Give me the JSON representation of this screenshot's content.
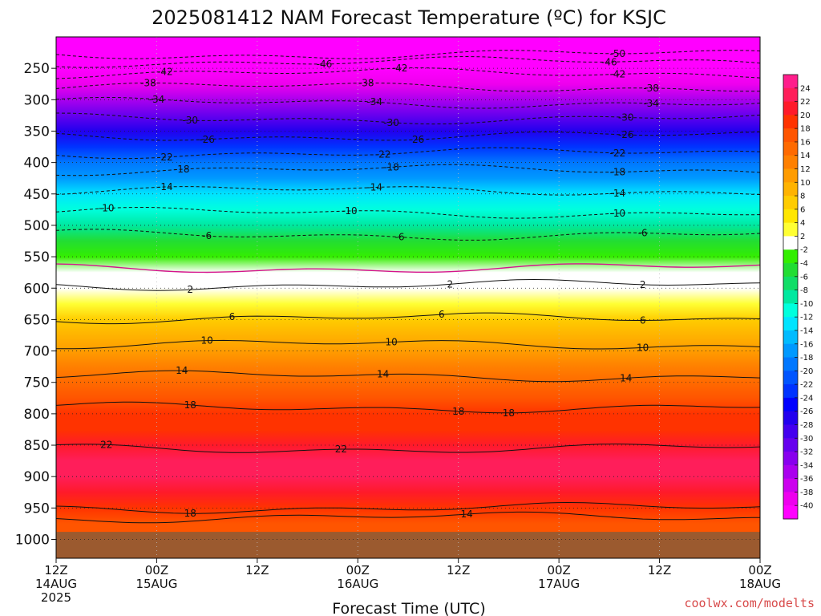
{
  "chart_data": {
    "type": "heatmap",
    "title": "2025081412 NAM Forecast Temperature (ºC) for KSJC",
    "xlabel": "Forecast Time (UTC)",
    "ylabel": "",
    "yaxis": {
      "ticks": [
        250,
        300,
        350,
        400,
        450,
        500,
        550,
        600,
        650,
        700,
        750,
        800,
        850,
        900,
        950,
        1000
      ],
      "range": [
        200,
        1030
      ],
      "inverted": true
    },
    "xaxis": {
      "range_hours": [
        0,
        84
      ],
      "ticks": [
        {
          "hour": 0,
          "line1": "12Z",
          "line2": "14AUG",
          "line3": "2025"
        },
        {
          "hour": 12,
          "line1": "00Z",
          "line2": "15AUG",
          "line3": ""
        },
        {
          "hour": 24,
          "line1": "12Z",
          "line2": "",
          "line3": ""
        },
        {
          "hour": 36,
          "line1": "00Z",
          "line2": "16AUG",
          "line3": ""
        },
        {
          "hour": 48,
          "line1": "12Z",
          "line2": "",
          "line3": ""
        },
        {
          "hour": 60,
          "line1": "00Z",
          "line2": "17AUG",
          "line3": ""
        },
        {
          "hour": 72,
          "line1": "12Z",
          "line2": "",
          "line3": ""
        },
        {
          "hour": 84,
          "line1": "00Z",
          "line2": "18AUG",
          "line3": ""
        }
      ]
    },
    "grid": true,
    "surface_pressure": 975,
    "colorbar": {
      "placement": "right",
      "labels": [
        "24",
        "22",
        "20",
        "18",
        "16",
        "14",
        "12",
        "10",
        "8",
        "6",
        "4",
        "2",
        "-2",
        "-4",
        "-6",
        "-8",
        "-10",
        "-12",
        "-14",
        "-16",
        "-18",
        "-20",
        "-22",
        "-24",
        "-26",
        "-28",
        "-30",
        "-32",
        "-34",
        "-36",
        "-38",
        "-40"
      ],
      "colors": [
        "#ff1e8c",
        "#ff1e5a",
        "#ff1a2a",
        "#ff3300",
        "#ff5500",
        "#ff6a00",
        "#ff8000",
        "#ff9c00",
        "#ffb300",
        "#ffcc00",
        "#ffe600",
        "#ffff33",
        "#ffffff",
        "#33ee00",
        "#22dd33",
        "#11dd66",
        "#00e8a0",
        "#00ffdd",
        "#00e4ff",
        "#00bbff",
        "#0099ff",
        "#0077ff",
        "#0055ff",
        "#0033ff",
        "#0000ff",
        "#2200ee",
        "#4400ee",
        "#6600ee",
        "#8800ee",
        "#aa00ee",
        "#cc00ee",
        "#ee00ee",
        "#ff00ff"
      ]
    },
    "contour_profile": [
      {
        "p": 225,
        "t": -50
      },
      {
        "p": 250,
        "t": -44
      },
      {
        "p": 275,
        "t": -39
      },
      {
        "p": 300,
        "t": -35
      },
      {
        "p": 325,
        "t": -31
      },
      {
        "p": 350,
        "t": -27
      },
      {
        "p": 375,
        "t": -24
      },
      {
        "p": 400,
        "t": -20
      },
      {
        "p": 425,
        "t": -17
      },
      {
        "p": 450,
        "t": -14
      },
      {
        "p": 475,
        "t": -11
      },
      {
        "p": 500,
        "t": -9
      },
      {
        "p": 525,
        "t": -6
      },
      {
        "p": 550,
        "t": -3.5
      },
      {
        "p": 575,
        "t": -1
      },
      {
        "p": 600,
        "t": 1
      },
      {
        "p": 625,
        "t": 3.5
      },
      {
        "p": 650,
        "t": 6
      },
      {
        "p": 675,
        "t": 8.5
      },
      {
        "p": 700,
        "t": 10.5
      },
      {
        "p": 725,
        "t": 12.5
      },
      {
        "p": 750,
        "t": 14.5
      },
      {
        "p": 775,
        "t": 16.5
      },
      {
        "p": 800,
        "t": 18
      },
      {
        "p": 825,
        "t": 19.5
      },
      {
        "p": 850,
        "t": 21
      },
      {
        "p": 875,
        "t": 22
      },
      {
        "p": 900,
        "t": 22.5
      },
      {
        "p": 925,
        "t": 21.5
      },
      {
        "p": 950,
        "t": 19
      },
      {
        "p": 975,
        "t": 17
      }
    ],
    "contours": [
      {
        "value": -50,
        "pressure": 228,
        "labels": [
          {
            "hour": 67,
            "text": "-50"
          }
        ]
      },
      {
        "value": -46,
        "pressure": 240,
        "labels": [
          {
            "hour": 32,
            "text": "-46"
          },
          {
            "hour": 66,
            "text": "-46"
          }
        ]
      },
      {
        "value": -42,
        "pressure": 258,
        "labels": [
          {
            "hour": 13,
            "text": "-42"
          },
          {
            "hour": 41,
            "text": "-42"
          },
          {
            "hour": 67,
            "text": "-42"
          }
        ]
      },
      {
        "value": -38,
        "pressure": 280,
        "labels": [
          {
            "hour": 11,
            "text": "-38"
          },
          {
            "hour": 37,
            "text": "-38"
          },
          {
            "hour": 71,
            "text": "-38"
          }
        ]
      },
      {
        "value": -34,
        "pressure": 305,
        "labels": [
          {
            "hour": 12,
            "text": "-34"
          },
          {
            "hour": 38,
            "text": "-34"
          },
          {
            "hour": 71,
            "text": "-34"
          }
        ]
      },
      {
        "value": -30,
        "pressure": 330,
        "labels": [
          {
            "hour": 16,
            "text": "-30"
          },
          {
            "hour": 40,
            "text": "-30"
          },
          {
            "hour": 68,
            "text": "-30"
          }
        ]
      },
      {
        "value": -26,
        "pressure": 358,
        "labels": [
          {
            "hour": 18,
            "text": "-26"
          },
          {
            "hour": 43,
            "text": "-26"
          },
          {
            "hour": 68,
            "text": "-26"
          }
        ]
      },
      {
        "value": -22,
        "pressure": 385,
        "labels": [
          {
            "hour": 13,
            "text": "-22"
          },
          {
            "hour": 39,
            "text": "-22"
          },
          {
            "hour": 67,
            "text": "-22"
          }
        ]
      },
      {
        "value": -18,
        "pressure": 412,
        "labels": [
          {
            "hour": 15,
            "text": "-18"
          },
          {
            "hour": 40,
            "text": "-18"
          },
          {
            "hour": 67,
            "text": "-18"
          }
        ]
      },
      {
        "value": -14,
        "pressure": 445,
        "labels": [
          {
            "hour": 13,
            "text": "-14"
          },
          {
            "hour": 38,
            "text": "-14"
          },
          {
            "hour": 67,
            "text": "-14"
          }
        ]
      },
      {
        "value": -10,
        "pressure": 480,
        "labels": [
          {
            "hour": 6,
            "text": "-10"
          },
          {
            "hour": 35,
            "text": "-10"
          },
          {
            "hour": 67,
            "text": "-10"
          }
        ]
      },
      {
        "value": -6,
        "pressure": 515,
        "labels": [
          {
            "hour": 18,
            "text": "-6"
          },
          {
            "hour": 41,
            "text": "-6"
          },
          {
            "hour": 70,
            "text": "-6"
          }
        ]
      },
      {
        "value": -2,
        "pressure": 568,
        "labels": []
      },
      {
        "value": 2,
        "pressure": 595,
        "labels": [
          {
            "hour": 16,
            "text": "2"
          },
          {
            "hour": 47,
            "text": "2"
          },
          {
            "hour": 70,
            "text": "2"
          }
        ]
      },
      {
        "value": 6,
        "pressure": 648,
        "labels": [
          {
            "hour": 21,
            "text": "6"
          },
          {
            "hour": 46,
            "text": "6"
          },
          {
            "hour": 70,
            "text": "6"
          }
        ]
      },
      {
        "value": 10,
        "pressure": 690,
        "labels": [
          {
            "hour": 18,
            "text": "10"
          },
          {
            "hour": 40,
            "text": "10"
          },
          {
            "hour": 70,
            "text": "10"
          }
        ]
      },
      {
        "value": 14,
        "pressure": 740,
        "labels": [
          {
            "hour": 15,
            "text": "14"
          },
          {
            "hour": 39,
            "text": "14"
          },
          {
            "hour": 68,
            "text": "14"
          }
        ]
      },
      {
        "value": 18,
        "pressure": 790,
        "labels": [
          {
            "hour": 16,
            "text": "18"
          },
          {
            "hour": 54,
            "text": "18"
          },
          {
            "hour": 48,
            "text": "18"
          }
        ]
      },
      {
        "value": 22,
        "pressure": 855,
        "labels": [
          {
            "hour": 6,
            "text": "22"
          },
          {
            "hour": 34,
            "text": "22"
          }
        ]
      },
      {
        "value": 18,
        "pressure": 950,
        "labels": [
          {
            "hour": 16,
            "text": "18"
          }
        ]
      },
      {
        "value": 14,
        "pressure": 965,
        "labels": [
          {
            "hour": 49,
            "text": "14"
          }
        ]
      }
    ]
  },
  "credit": "coolwx.com/modelts"
}
